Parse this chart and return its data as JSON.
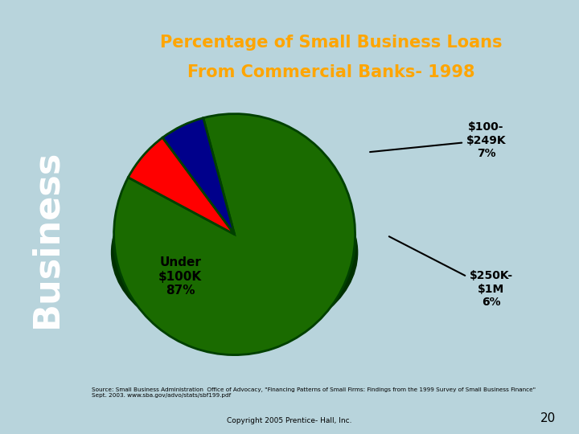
{
  "title_line1": "Percentage of Small Business Loans",
  "title_line2": "From Commercial Banks- 1998",
  "title_bg_color": "#4169E1",
  "title_text_color": "#FFA500",
  "slide_bg_color": "#B8D4DC",
  "chart_bg_color": "#FFA500",
  "pie_data": [
    87,
    7,
    6
  ],
  "pie_colors": [
    "#1A6B00",
    "#FF0000",
    "#00008B"
  ],
  "pie_edge_color": "#004000",
  "side_text": "Business",
  "side_text_color": "#FFFFFF",
  "label_100_249": "$100-\n$249K\n7%",
  "label_under": "Under\n$100K\n87%",
  "label_250_1m": "$250K-\n$1M\n6%",
  "source_text": "Source: Small Business Administration  Office of Advocacy, \"Financing Patterns of Small Firms: Findings from the 1999 Survey of Small Business Finance\"\nSept. 2003. www.sba.gov/advo/stats/sbf199.pdf",
  "copyright_text": "Copyright 2005 Prentice- Hall, Inc.",
  "page_number": "20",
  "chart_border_color": "#8B6914"
}
